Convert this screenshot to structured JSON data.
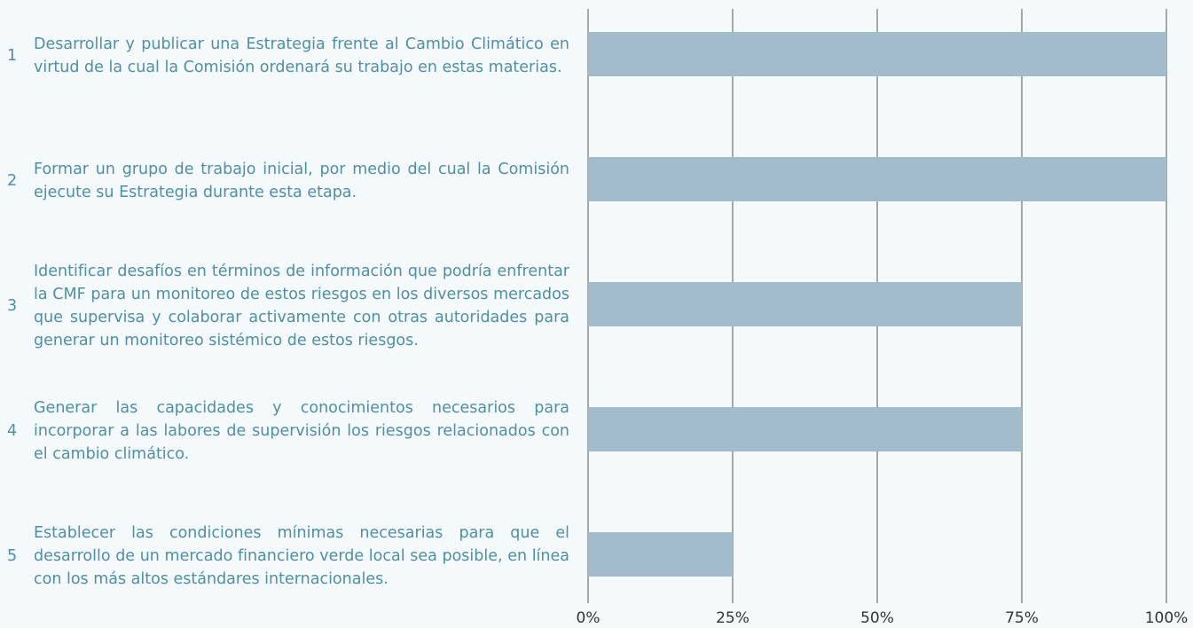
{
  "chart_data": {
    "type": "barh",
    "item_numbers": [
      1,
      2,
      3,
      4,
      5
    ],
    "categories": [
      "Desarrollar y publicar una Estrategia frente al Cambio Climático en virtud de la cual la Comisión ordenará su trabajo en estas materias.",
      "Formar un grupo de trabajo inicial, por medio del cual la Comisión ejecute su Estrategia durante esta etapa.",
      "Identificar desafíos en términos de información que podría enfrentar la CMF para un monitoreo de estos riesgos en los diversos mercados que supervisa y colaborar activamente con otras autoridades para generar un monitoreo sistémico de estos riesgos.",
      "Generar las capacidades y conocimientos necesarios para incorporar a las labores de supervisión los riesgos relacionados con el cambio climático.",
      "Establecer las condiciones mínimas necesarias para que el desarrollo de un mercado financiero verde local sea posible, en línea con los más altos estándares internacionales."
    ],
    "values": [
      100,
      100,
      75,
      75,
      25
    ],
    "color": "#a3bccb",
    "xlim": [
      0,
      100
    ],
    "xticks": [
      {
        "value": 0,
        "label": "0%"
      },
      {
        "value": 25,
        "label": "25%"
      },
      {
        "value": 50,
        "label": "50%"
      },
      {
        "value": 75,
        "label": "75%"
      },
      {
        "value": 100,
        "label": "100%"
      }
    ],
    "grid": true
  }
}
